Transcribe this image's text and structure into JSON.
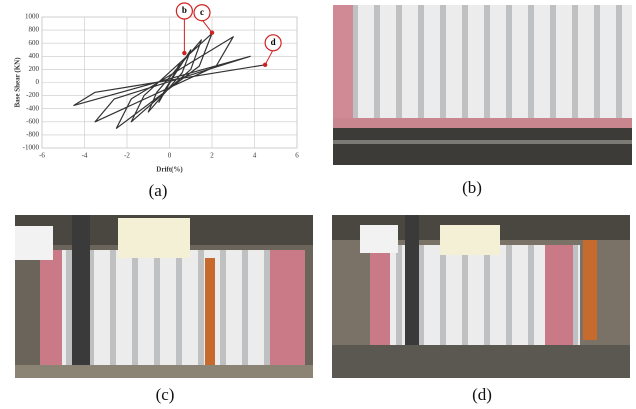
{
  "chart_data": {
    "type": "line",
    "xlabel": "Drift(%)",
    "ylabel": "Base Shear (KN)",
    "x": [
      0,
      0.5,
      0.2,
      -0.5,
      -0.2,
      1,
      0.6,
      -1,
      -0.6,
      1.5,
      1.0,
      -1.8,
      -1.2,
      2,
      1.4,
      -2.5,
      -1.8,
      3,
      2.2,
      -3.5,
      -2.6,
      3.8,
      -4.5,
      -3.5,
      4.5
    ],
    "values": [
      0,
      300,
      100,
      -300,
      -100,
      500,
      150,
      -450,
      -150,
      650,
      200,
      -600,
      -200,
      750,
      250,
      -700,
      -250,
      700,
      250,
      -600,
      -250,
      400,
      -350,
      -150,
      270
    ],
    "color": "#333333",
    "xlim": [
      -6,
      6
    ],
    "xticks": [
      -6,
      -4,
      -2,
      0,
      2,
      4,
      6
    ],
    "ylim": [
      -1000,
      1000
    ],
    "yticks": [
      -1000,
      -800,
      -600,
      -400,
      -200,
      0,
      200,
      400,
      600,
      800,
      1000
    ],
    "grid": true,
    "annotations": [
      {
        "text": "b",
        "x": 0.7,
        "y": 450
      },
      {
        "text": "c",
        "x": 2,
        "y": 760
      },
      {
        "text": "d",
        "x": 4.5,
        "y": 270
      }
    ]
  },
  "captions": [
    "(a)",
    "(b)",
    "(c)",
    "(d)"
  ]
}
